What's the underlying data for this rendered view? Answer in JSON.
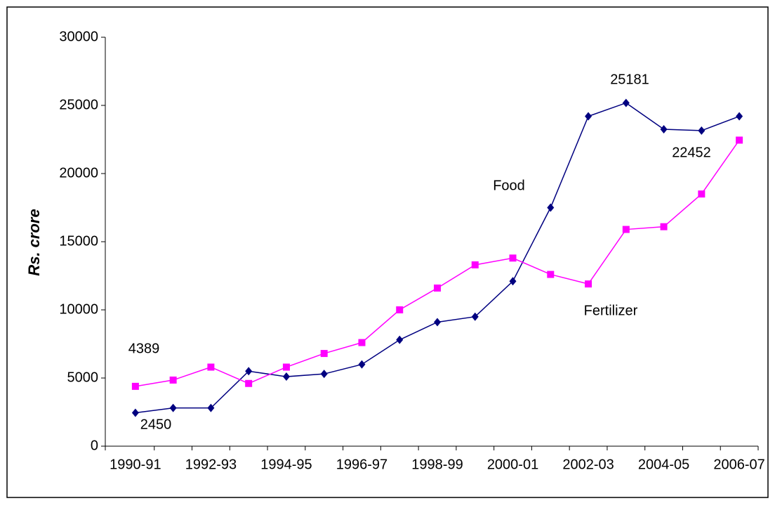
{
  "chart_data": {
    "type": "line",
    "y_label": "Rs. crore",
    "categories": [
      "1990-91",
      null,
      "1992-93",
      null,
      "1994-95",
      null,
      "1996-97",
      null,
      "1998-99",
      null,
      "2000-01",
      null,
      "2002-03",
      null,
      "2004-05",
      null,
      "2006-07"
    ],
    "series": [
      {
        "name": "Food",
        "color": "#000080",
        "marker": "diamond",
        "values": [
          2450,
          2800,
          2800,
          5500,
          5100,
          5300,
          6000,
          7800,
          9100,
          9500,
          12100,
          17500,
          24200,
          25181,
          23250,
          23150,
          24200
        ]
      },
      {
        "name": "Fertilizer",
        "color": "#ff00ff",
        "marker": "square",
        "values": [
          4389,
          4850,
          5800,
          4600,
          5800,
          6800,
          7600,
          10000,
          11600,
          13300,
          13800,
          12600,
          11900,
          15900,
          16100,
          18500,
          22452
        ]
      }
    ],
    "ylim": [
      0,
      30000
    ],
    "yticks": [
      0,
      5000,
      10000,
      15000,
      20000,
      25000,
      30000
    ],
    "grid": false
  }
}
